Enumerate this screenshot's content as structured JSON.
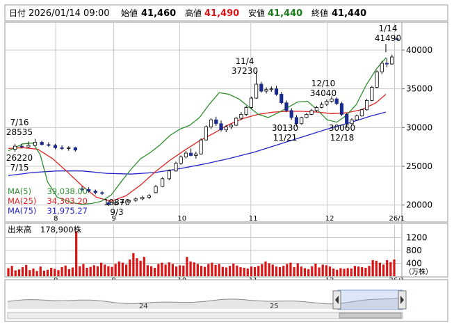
{
  "header": {
    "date_label": "日付",
    "datetime": "2026/01/14 09:00",
    "open_label": "始値",
    "open_value": "41,460",
    "high_label": "高値",
    "high_value": "41,490",
    "low_label": "安値",
    "low_value": "41,440",
    "close_label": "終値",
    "close_value": "41,440"
  },
  "colors": {
    "up": "#d81414",
    "down": "#1a2a8f",
    "ma5": "#2f8f2f",
    "ma25": "#e02020",
    "ma75": "#2323c8",
    "high_text": "#d81414",
    "low_text": "#1a7a1a",
    "volume": "#d81414",
    "grid": "#c8c8c8"
  },
  "chart_data": [
    {
      "type": "candlestick",
      "y_ticks": [
        "40000",
        "35000",
        "30000",
        "25000",
        "20000"
      ],
      "ylim": [
        18000,
        43500
      ],
      "x_ticks": [
        "8",
        "9",
        "10",
        "11",
        "12",
        "26/1"
      ],
      "grid": true,
      "ma_legend": [
        {
          "name": "MA(5)",
          "value": "39,038.00",
          "color": "#2f8f2f"
        },
        {
          "name": "MA(25)",
          "value": "34,303.20",
          "color": "#e02020"
        },
        {
          "name": "MA(75)",
          "value": "31,975.27",
          "color": "#2323c8"
        }
      ],
      "annotations": [
        {
          "date": "7/16",
          "value": "28535",
          "kind": "high"
        },
        {
          "date": "7/15",
          "value": "26220",
          "kind": "low"
        },
        {
          "date": "9/3",
          "value": "19870",
          "kind": "low"
        },
        {
          "date": "11/4",
          "value": "37230",
          "kind": "high"
        },
        {
          "date": "11/21",
          "value": "30130",
          "kind": "low"
        },
        {
          "date": "12/10",
          "value": "34040",
          "kind": "high"
        },
        {
          "date": "12/18",
          "value": "30060",
          "kind": "low"
        },
        {
          "date": "1/14",
          "value": "41490",
          "kind": "high"
        }
      ],
      "ma5": [
        [
          0,
          27000
        ],
        [
          6,
          27900
        ],
        [
          10,
          28000
        ],
        [
          13,
          26500
        ],
        [
          16,
          23000
        ],
        [
          20,
          21000
        ],
        [
          26,
          20300
        ],
        [
          30,
          20100
        ],
        [
          34,
          20200
        ],
        [
          38,
          20500
        ],
        [
          42,
          21300
        ],
        [
          46,
          23000
        ],
        [
          50,
          24600
        ],
        [
          54,
          26000
        ],
        [
          58,
          26800
        ],
        [
          62,
          27800
        ],
        [
          66,
          29000
        ],
        [
          70,
          29800
        ],
        [
          74,
          30300
        ],
        [
          78,
          31300
        ],
        [
          82,
          33000
        ],
        [
          86,
          34500
        ],
        [
          90,
          34300
        ],
        [
          94,
          33700
        ],
        [
          98,
          32700
        ],
        [
          102,
          31700
        ],
        [
          106,
          31300
        ],
        [
          110,
          31900
        ],
        [
          114,
          32600
        ],
        [
          118,
          33300
        ],
        [
          122,
          33400
        ],
        [
          126,
          32300
        ],
        [
          130,
          31000
        ],
        [
          134,
          30700
        ],
        [
          138,
          31600
        ],
        [
          142,
          33000
        ],
        [
          146,
          35500
        ],
        [
          150,
          37500
        ],
        [
          154,
          39000
        ]
      ],
      "ma25": [
        [
          0,
          27300
        ],
        [
          6,
          27400
        ],
        [
          12,
          27200
        ],
        [
          18,
          26000
        ],
        [
          24,
          24300
        ],
        [
          30,
          22500
        ],
        [
          36,
          21000
        ],
        [
          42,
          20500
        ],
        [
          48,
          21200
        ],
        [
          54,
          22600
        ],
        [
          60,
          24300
        ],
        [
          66,
          25800
        ],
        [
          72,
          27100
        ],
        [
          78,
          28300
        ],
        [
          84,
          29300
        ],
        [
          90,
          30400
        ],
        [
          96,
          31200
        ],
        [
          102,
          31700
        ],
        [
          108,
          32000
        ],
        [
          114,
          32100
        ],
        [
          120,
          32100
        ],
        [
          126,
          32000
        ],
        [
          132,
          31800
        ],
        [
          138,
          31900
        ],
        [
          144,
          32300
        ],
        [
          150,
          33200
        ],
        [
          154,
          34300
        ]
      ],
      "ma75": [
        [
          0,
          23800
        ],
        [
          10,
          24200
        ],
        [
          20,
          24400
        ],
        [
          30,
          24400
        ],
        [
          40,
          24100
        ],
        [
          50,
          24000
        ],
        [
          60,
          24200
        ],
        [
          70,
          24700
        ],
        [
          80,
          25300
        ],
        [
          90,
          26000
        ],
        [
          100,
          26800
        ],
        [
          110,
          27800
        ],
        [
          120,
          28800
        ],
        [
          130,
          29800
        ],
        [
          140,
          30700
        ],
        [
          148,
          31500
        ],
        [
          154,
          32000
        ]
      ],
      "candles": [
        [
          27200,
          27900,
          26900,
          27600
        ],
        [
          27600,
          27900,
          27300,
          27500
        ],
        [
          27500,
          28200,
          27400,
          27700
        ],
        [
          27700,
          28535,
          27600,
          28100
        ],
        [
          28100,
          28300,
          27700,
          27800
        ],
        [
          27800,
          28100,
          27500,
          27700
        ],
        [
          27700,
          27900,
          27200,
          27400
        ],
        [
          27400,
          27700,
          27100,
          27300
        ],
        [
          27300,
          27600,
          27000,
          27400
        ],
        [
          27400,
          27500,
          26900,
          27100
        ],
        [
          22100,
          22400,
          21800,
          22000
        ],
        [
          22000,
          22300,
          21600,
          21800
        ],
        [
          21800,
          22000,
          21400,
          21600
        ],
        [
          21600,
          21800,
          21300,
          21500
        ],
        [
          20300,
          20500,
          19870,
          20100
        ],
        [
          20100,
          20400,
          19950,
          20300
        ],
        [
          20300,
          20600,
          20100,
          20400
        ],
        [
          20400,
          20700,
          20200,
          20600
        ],
        [
          20600,
          21000,
          20400,
          20800
        ],
        [
          20800,
          21200,
          20600,
          21000
        ],
        [
          21000,
          21400,
          20800,
          21200
        ],
        [
          21600,
          22600,
          21500,
          22400
        ],
        [
          22400,
          23600,
          22300,
          23400
        ],
        [
          23400,
          24600,
          23200,
          24400
        ],
        [
          24400,
          25600,
          24300,
          25400
        ],
        [
          25400,
          26400,
          25200,
          26200
        ],
        [
          26200,
          27000,
          26000,
          26700
        ],
        [
          26700,
          27300,
          26300,
          26400
        ],
        [
          26400,
          26900,
          26000,
          26600
        ],
        [
          26600,
          28600,
          26500,
          28400
        ],
        [
          28400,
          30300,
          28300,
          30100
        ],
        [
          30100,
          31200,
          29800,
          31000
        ],
        [
          31000,
          31400,
          30200,
          30500
        ],
        [
          30500,
          30900,
          29500,
          29700
        ],
        [
          29700,
          30300,
          29400,
          30100
        ],
        [
          30100,
          30500,
          29800,
          30300
        ],
        [
          30300,
          31400,
          30200,
          31200
        ],
        [
          31200,
          32000,
          31000,
          31700
        ],
        [
          31700,
          32800,
          31500,
          32600
        ],
        [
          32600,
          34000,
          32400,
          33800
        ],
        [
          33800,
          37230,
          33700,
          35600
        ],
        [
          35600,
          35900,
          34500,
          34700
        ],
        [
          34700,
          35200,
          34400,
          34900
        ],
        [
          34900,
          35300,
          34600,
          35000
        ],
        [
          35000,
          35400,
          34100,
          34300
        ],
        [
          34300,
          34600,
          33000,
          33200
        ],
        [
          33200,
          33500,
          32000,
          32200
        ],
        [
          32200,
          32500,
          31000,
          31300
        ],
        [
          31300,
          31600,
          30130,
          30500
        ],
        [
          30500,
          31400,
          30400,
          31300
        ],
        [
          31300,
          31900,
          31200,
          31700
        ],
        [
          31700,
          32400,
          31600,
          32200
        ],
        [
          32200,
          32800,
          32000,
          32600
        ],
        [
          32600,
          33300,
          32500,
          33000
        ],
        [
          33000,
          33600,
          32800,
          33400
        ],
        [
          33400,
          34040,
          33200,
          33700
        ],
        [
          33700,
          33900,
          32900,
          33100
        ],
        [
          33100,
          33300,
          31500,
          31700
        ],
        [
          31700,
          31900,
          30060,
          30500
        ],
        [
          30500,
          31200,
          30400,
          31000
        ],
        [
          31000,
          31700,
          30900,
          31500
        ],
        [
          31500,
          32400,
          31400,
          32300
        ],
        [
          32300,
          33700,
          32200,
          33500
        ],
        [
          33500,
          35400,
          33400,
          35200
        ],
        [
          35200,
          37400,
          35100,
          37200
        ],
        [
          37200,
          38600,
          36900,
          38300
        ],
        [
          38300,
          39000,
          37800,
          38200
        ],
        [
          38200,
          39400,
          38100,
          39100
        ],
        [
          41460,
          41490,
          41440,
          41440
        ]
      ],
      "candle_x": [
        4,
        8,
        12,
        16,
        20,
        24,
        28,
        32,
        36,
        40,
        44,
        48,
        52,
        56,
        60,
        64,
        68,
        72,
        76,
        80,
        84,
        88,
        92,
        96,
        100,
        103,
        106,
        109,
        112,
        115,
        118,
        121,
        124,
        127,
        130,
        133,
        136,
        139,
        142,
        145,
        148,
        151,
        154,
        157,
        160,
        163,
        166,
        169,
        172,
        175,
        178,
        181,
        184,
        187,
        190,
        193,
        196,
        199,
        202,
        205,
        208,
        211,
        214,
        217,
        220,
        223,
        226,
        229,
        232
      ]
    },
    {
      "type": "bar",
      "title": "出来高",
      "latest_value": "178,900株",
      "y_ticks": [
        "1200",
        "800",
        "400"
      ],
      "unit": "（万株）",
      "ylim": [
        0,
        1600
      ],
      "x_ticks": [
        "8",
        "9",
        "10",
        "11",
        "12",
        "26/1"
      ],
      "values": [
        250,
        320,
        180,
        210,
        280,
        350,
        190,
        240,
        160,
        300,
        170,
        200,
        260,
        230,
        190,
        280,
        330,
        220,
        270,
        1400,
        310,
        380,
        260,
        290,
        340,
        310,
        420,
        360,
        310,
        290,
        380,
        460,
        420,
        360,
        520,
        720,
        560,
        480,
        600,
        340,
        310,
        260,
        380,
        420,
        360,
        430,
        380,
        300,
        340,
        330,
        600,
        460,
        430,
        380,
        320,
        290,
        380,
        420,
        350,
        380,
        290,
        270,
        320,
        390,
        330,
        280,
        260,
        240,
        300,
        280,
        320,
        380,
        460,
        400,
        360,
        300,
        280,
        320,
        380,
        420,
        280,
        400,
        300,
        250,
        220,
        310,
        390,
        270,
        360,
        340,
        300,
        240,
        200,
        250,
        230,
        250,
        240,
        320,
        300,
        280,
        260,
        320,
        500,
        480,
        420,
        360,
        500,
        440,
        520
      ]
    },
    {
      "type": "area",
      "x_ticks": [
        "24",
        "25"
      ]
    }
  ]
}
